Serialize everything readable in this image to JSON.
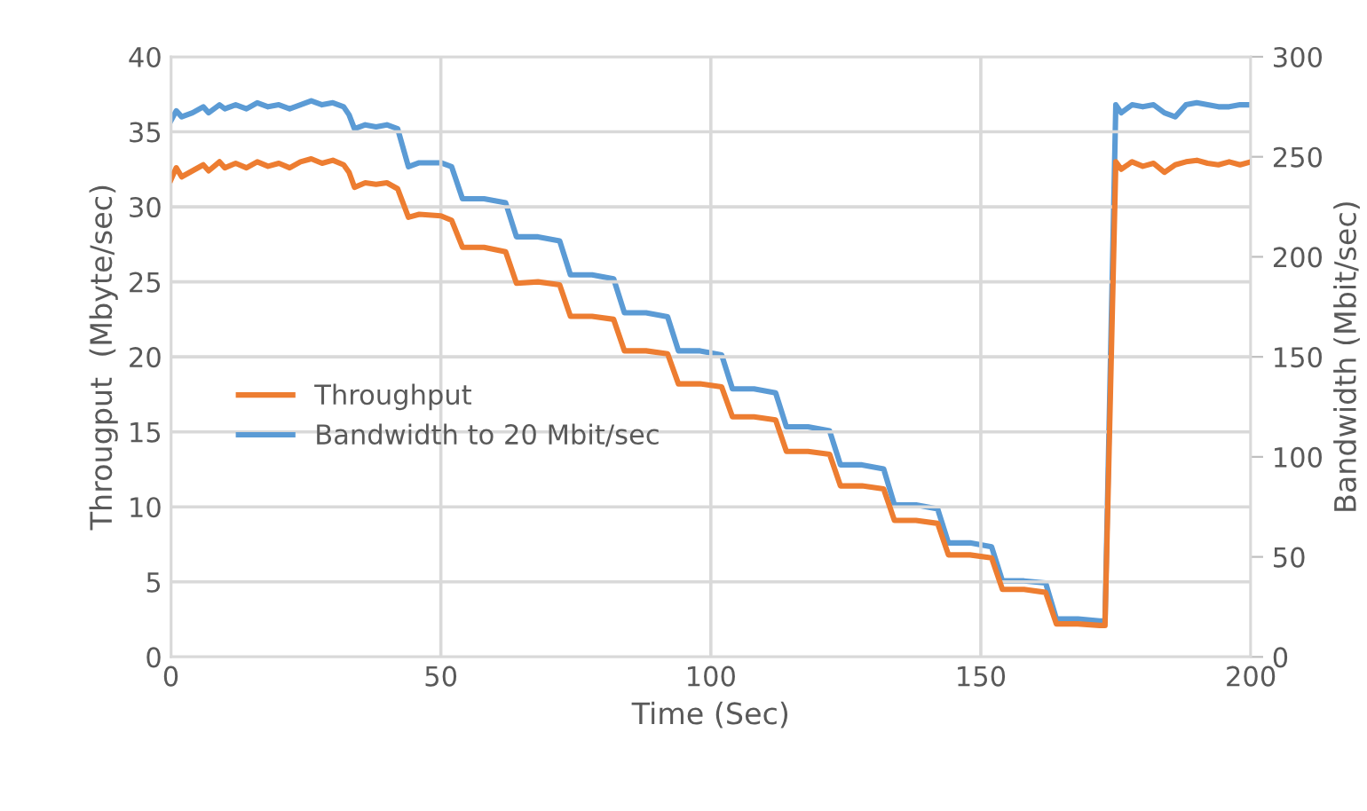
{
  "chart_data": {
    "type": "line",
    "xlabel": "Time (Sec)",
    "ylabel": "Througput  (Mbyte/sec)",
    "y2label": "Bandwidth (Mbit/sec)",
    "xlim": [
      0,
      200
    ],
    "xticks": [
      0,
      50,
      100,
      150,
      200
    ],
    "ylim": [
      0,
      40
    ],
    "yticks": [
      0,
      5,
      10,
      15,
      20,
      25,
      30,
      35,
      40
    ],
    "y2lim": [
      0,
      300
    ],
    "y2ticks": [
      0,
      50,
      100,
      150,
      200,
      250,
      300
    ],
    "grid": true,
    "legend": "center left",
    "marker": "none",
    "line_style": "solid",
    "series": [
      {
        "name": "Throughput",
        "color": "#ed7d31",
        "x": [
          0,
          1,
          2,
          4,
          6,
          7,
          9,
          10,
          12,
          14,
          16,
          18,
          20,
          22,
          24,
          26,
          28,
          30,
          32,
          33,
          34,
          36,
          38,
          40,
          42,
          44,
          46,
          50,
          52,
          54,
          58,
          62,
          64,
          68,
          72,
          74,
          78,
          82,
          84,
          88,
          92,
          94,
          98,
          102,
          104,
          108,
          112,
          114,
          118,
          122,
          124,
          128,
          132,
          134,
          138,
          142,
          144,
          148,
          152,
          154,
          158,
          162,
          164,
          168,
          172,
          173,
          175,
          176,
          178,
          180,
          182,
          184,
          186,
          188,
          190,
          192,
          194,
          196,
          198,
          200
        ],
        "values": [
          31.8,
          32.6,
          32.0,
          32.4,
          32.8,
          32.4,
          33.0,
          32.6,
          32.9,
          32.6,
          33.0,
          32.7,
          32.9,
          32.6,
          33.0,
          33.2,
          32.9,
          33.1,
          32.8,
          32.3,
          31.3,
          31.6,
          31.5,
          31.6,
          31.2,
          29.3,
          29.5,
          29.4,
          29.1,
          27.3,
          27.3,
          27.0,
          24.9,
          25.0,
          24.8,
          22.7,
          22.7,
          22.5,
          20.4,
          20.4,
          20.2,
          18.2,
          18.2,
          18.0,
          16.0,
          16.0,
          15.8,
          13.7,
          13.7,
          13.5,
          11.4,
          11.4,
          11.2,
          9.1,
          9.1,
          8.9,
          6.8,
          6.8,
          6.6,
          4.5,
          4.5,
          4.3,
          2.2,
          2.2,
          2.1,
          2.1,
          33.0,
          32.5,
          33.0,
          32.7,
          32.9,
          32.3,
          32.8,
          33.0,
          33.1,
          32.9,
          32.8,
          33.0,
          32.8,
          33.0
        ]
      },
      {
        "name": "Bandwidth to 20 Mbit/sec",
        "color": "#5b9bd5",
        "axis": "y2",
        "x": [
          0,
          1,
          2,
          4,
          6,
          7,
          9,
          10,
          12,
          14,
          16,
          18,
          20,
          22,
          24,
          26,
          28,
          30,
          32,
          33,
          34,
          36,
          38,
          40,
          42,
          44,
          46,
          50,
          52,
          54,
          58,
          62,
          64,
          68,
          72,
          74,
          78,
          82,
          84,
          88,
          92,
          94,
          98,
          102,
          104,
          108,
          112,
          114,
          118,
          122,
          124,
          128,
          132,
          134,
          138,
          142,
          144,
          148,
          152,
          154,
          158,
          162,
          164,
          168,
          172,
          173,
          175,
          176,
          178,
          180,
          182,
          184,
          186,
          188,
          190,
          192,
          194,
          196,
          198,
          200
        ],
        "values": [
          268,
          273,
          270,
          272,
          275,
          272,
          276,
          274,
          276,
          274,
          277,
          275,
          276,
          274,
          276,
          278,
          276,
          277,
          275,
          271,
          264,
          266,
          265,
          266,
          264,
          245,
          247,
          247,
          245,
          229,
          229,
          227,
          210,
          210,
          208,
          191,
          191,
          189,
          172,
          172,
          170,
          153,
          153,
          151,
          134,
          134,
          132,
          115,
          115,
          113,
          96,
          96,
          94,
          76,
          76,
          74,
          57,
          57,
          55,
          38,
          38,
          37,
          19,
          19,
          18,
          18,
          276,
          272,
          276,
          275,
          276,
          272,
          270,
          276,
          277,
          276,
          275,
          275,
          276,
          276
        ]
      }
    ]
  }
}
